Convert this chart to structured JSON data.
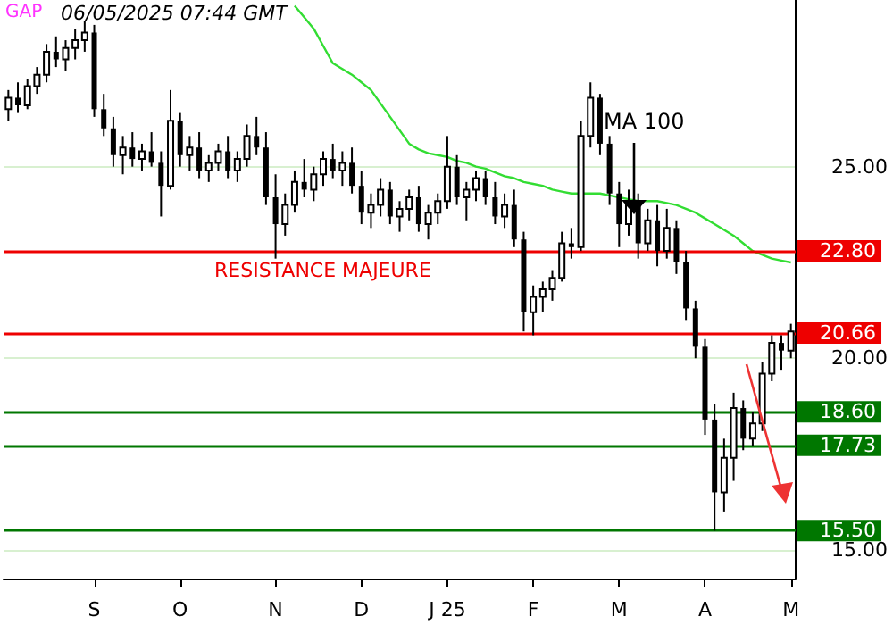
{
  "chart_data": {
    "type": "candlestick",
    "categories": [
      null,
      null,
      null,
      null,
      null,
      null,
      null,
      null,
      null,
      "S",
      null,
      null,
      null,
      null,
      null,
      null,
      null,
      null,
      "O",
      null,
      null,
      null,
      null,
      null,
      null,
      null,
      null,
      null,
      "N",
      null,
      null,
      null,
      null,
      null,
      null,
      null,
      null,
      "D",
      null,
      null,
      null,
      null,
      null,
      null,
      null,
      null,
      "J 25",
      null,
      null,
      null,
      null,
      null,
      null,
      null,
      null,
      "F",
      null,
      null,
      null,
      null,
      null,
      null,
      null,
      null,
      "M",
      null,
      null,
      null,
      null,
      null,
      null,
      null,
      null,
      "A",
      null,
      null,
      null,
      null,
      null,
      null,
      null,
      null,
      "M"
    ],
    "ohlc": [
      [
        26.5,
        27.0,
        26.2,
        26.8
      ],
      [
        26.8,
        27.2,
        26.4,
        26.6
      ],
      [
        26.6,
        27.3,
        26.5,
        27.1
      ],
      [
        27.1,
        27.6,
        26.9,
        27.4
      ],
      [
        27.4,
        28.2,
        27.2,
        28.0
      ],
      [
        28.0,
        28.4,
        27.6,
        27.8
      ],
      [
        27.8,
        28.3,
        27.5,
        28.1
      ],
      [
        28.1,
        28.6,
        27.8,
        28.3
      ],
      [
        28.3,
        28.8,
        28.0,
        28.5
      ],
      [
        28.5,
        28.7,
        26.3,
        26.5
      ],
      [
        26.5,
        26.9,
        25.8,
        26.0
      ],
      [
        26.0,
        26.3,
        25.0,
        25.3
      ],
      [
        25.3,
        25.8,
        24.8,
        25.5
      ],
      [
        25.5,
        25.9,
        25.0,
        25.2
      ],
      [
        25.2,
        25.6,
        24.9,
        25.4
      ],
      [
        25.4,
        25.9,
        25.0,
        25.1
      ],
      [
        25.1,
        25.4,
        23.7,
        24.5
      ],
      [
        24.5,
        27.0,
        24.4,
        26.2
      ],
      [
        26.2,
        26.4,
        25.0,
        25.3
      ],
      [
        25.3,
        25.8,
        24.9,
        25.5
      ],
      [
        25.5,
        25.9,
        24.7,
        24.9
      ],
      [
        24.9,
        25.3,
        24.6,
        25.1
      ],
      [
        25.1,
        25.6,
        24.9,
        25.4
      ],
      [
        25.4,
        25.8,
        24.7,
        24.9
      ],
      [
        24.9,
        25.4,
        24.6,
        25.2
      ],
      [
        25.2,
        26.1,
        25.0,
        25.8
      ],
      [
        25.8,
        26.3,
        25.3,
        25.5
      ],
      [
        25.5,
        25.9,
        24.0,
        24.2
      ],
      [
        24.2,
        24.8,
        22.6,
        23.5
      ],
      [
        23.5,
        24.3,
        23.2,
        24.0
      ],
      [
        24.0,
        24.9,
        23.8,
        24.6
      ],
      [
        24.6,
        25.2,
        24.2,
        24.4
      ],
      [
        24.4,
        25.0,
        24.1,
        24.8
      ],
      [
        24.8,
        25.4,
        24.5,
        25.2
      ],
      [
        25.2,
        25.6,
        24.7,
        24.9
      ],
      [
        24.9,
        25.4,
        24.5,
        25.1
      ],
      [
        25.1,
        25.5,
        24.3,
        24.5
      ],
      [
        24.5,
        24.9,
        23.5,
        23.8
      ],
      [
        23.8,
        24.3,
        23.4,
        24.0
      ],
      [
        24.0,
        24.7,
        23.7,
        24.4
      ],
      [
        24.4,
        24.6,
        23.5,
        23.7
      ],
      [
        23.7,
        24.1,
        23.3,
        23.9
      ],
      [
        23.9,
        24.4,
        23.6,
        24.2
      ],
      [
        24.2,
        24.5,
        23.3,
        23.5
      ],
      [
        23.5,
        24.0,
        23.1,
        23.8
      ],
      [
        23.8,
        24.3,
        23.5,
        24.1
      ],
      [
        24.1,
        25.8,
        23.9,
        25.0
      ],
      [
        25.0,
        25.3,
        24.0,
        24.2
      ],
      [
        24.2,
        24.6,
        23.6,
        24.4
      ],
      [
        24.4,
        24.9,
        24.1,
        24.7
      ],
      [
        24.7,
        24.9,
        24.0,
        24.2
      ],
      [
        24.2,
        24.6,
        23.5,
        23.7
      ],
      [
        23.7,
        24.3,
        23.4,
        24.0
      ],
      [
        24.0,
        24.4,
        22.9,
        23.1
      ],
      [
        23.1,
        23.3,
        20.7,
        21.2
      ],
      [
        21.2,
        21.9,
        20.6,
        21.6
      ],
      [
        21.6,
        22.0,
        21.2,
        21.8
      ],
      [
        21.8,
        22.3,
        21.5,
        22.1
      ],
      [
        22.1,
        23.3,
        22.0,
        23.0
      ],
      [
        23.0,
        23.4,
        22.6,
        22.9
      ],
      [
        22.9,
        26.2,
        22.8,
        25.8
      ],
      [
        25.8,
        27.2,
        25.5,
        26.8
      ],
      [
        26.8,
        26.9,
        25.3,
        25.6
      ],
      [
        25.6,
        25.8,
        24.0,
        24.3
      ],
      [
        24.3,
        24.6,
        22.9,
        23.5
      ],
      [
        23.5,
        24.4,
        23.2,
        24.1
      ],
      [
        24.1,
        24.3,
        22.6,
        23.0
      ],
      [
        23.0,
        23.9,
        22.8,
        23.6
      ],
      [
        23.6,
        24.0,
        22.4,
        22.8
      ],
      [
        22.8,
        23.9,
        22.6,
        23.4
      ],
      [
        23.4,
        23.6,
        22.2,
        22.5
      ],
      [
        22.5,
        22.8,
        21.0,
        21.3
      ],
      [
        21.3,
        21.5,
        20.0,
        20.3
      ],
      [
        20.3,
        20.5,
        18.0,
        18.4
      ],
      [
        18.4,
        18.8,
        15.5,
        16.5
      ],
      [
        16.5,
        17.9,
        16.0,
        17.4
      ],
      [
        17.4,
        19.1,
        16.8,
        18.7
      ],
      [
        18.7,
        18.9,
        17.6,
        17.9
      ],
      [
        17.9,
        18.6,
        17.7,
        18.3
      ],
      [
        18.3,
        19.9,
        18.1,
        19.6
      ],
      [
        19.6,
        20.6,
        19.4,
        20.4
      ],
      [
        20.4,
        20.6,
        19.7,
        20.2
      ],
      [
        20.2,
        20.9,
        20.0,
        20.7
      ]
    ],
    "series": [
      {
        "name": "MA 100",
        "type": "line",
        "color": "#33dd33",
        "values": [
          null,
          null,
          null,
          null,
          null,
          null,
          null,
          null,
          null,
          null,
          null,
          null,
          null,
          null,
          null,
          null,
          null,
          null,
          null,
          null,
          null,
          null,
          null,
          null,
          null,
          null,
          null,
          null,
          null,
          null,
          29.2,
          28.9,
          28.6,
          28.15,
          27.7,
          27.55,
          27.4,
          27.2,
          27.0,
          26.65,
          26.3,
          25.95,
          25.6,
          25.45,
          25.35,
          25.3,
          25.25,
          25.15,
          25.1,
          25.0,
          24.95,
          24.85,
          24.75,
          24.7,
          24.6,
          24.55,
          24.5,
          24.4,
          24.35,
          24.3,
          24.3,
          24.3,
          24.3,
          24.25,
          24.2,
          24.15,
          24.1,
          24.1,
          24.1,
          24.05,
          24.0,
          23.9,
          23.8,
          23.65,
          23.5,
          23.35,
          23.2,
          23.0,
          22.8,
          22.7,
          22.6,
          22.55,
          22.5
        ]
      }
    ],
    "ylim": [
      14.25,
      29.35
    ],
    "yticks": [
      {
        "value": 15,
        "label": "15.00"
      },
      {
        "value": 20,
        "label": "20.00"
      },
      {
        "value": 25,
        "label": "25.00"
      }
    ],
    "grid": "y",
    "ref_lines": [
      {
        "axis": "y",
        "value": 22.8,
        "label": "22.80",
        "color": "#ee0000"
      },
      {
        "axis": "y",
        "value": 20.66,
        "label": "20.66",
        "color": "#ee0000"
      },
      {
        "axis": "y",
        "value": 18.6,
        "label": "18.60",
        "color": "#007700"
      },
      {
        "axis": "y",
        "value": 17.73,
        "label": "17.73",
        "color": "#007700"
      },
      {
        "axis": "y",
        "value": 15.5,
        "label": "15.50",
        "color": "#007700"
      }
    ],
    "annotations": [
      "06/05/2025 07:44 GMT",
      "RESISTANCE MAJEURE",
      "GAP"
    ]
  }
}
